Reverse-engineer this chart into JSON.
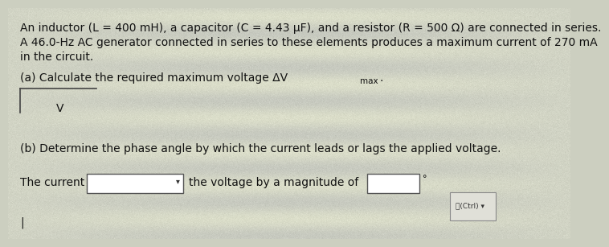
{
  "bg_color": "#cccfc0",
  "text_color": "#1a1a1a",
  "line1": "An inductor (L = 400 mH), a capacitor (C = 4.43 μF), and a resistor (R = 500 Ω) are connected in series.",
  "line2": "A 46.0-Hz AC generator connected in series to these elements produces a maximum current of 270 mA",
  "line3": "in the circuit.",
  "part_a_label": "(a) Calculate the required maximum voltage ΔV",
  "part_a_subscript": "max",
  "part_a_colon": ".",
  "part_a_unit": "V",
  "part_b_label": "(b) Determine the phase angle by which the current leads or lags the applied voltage.",
  "font_size_body": 10.0,
  "font_size_small": 8.0,
  "tc": "#111111"
}
